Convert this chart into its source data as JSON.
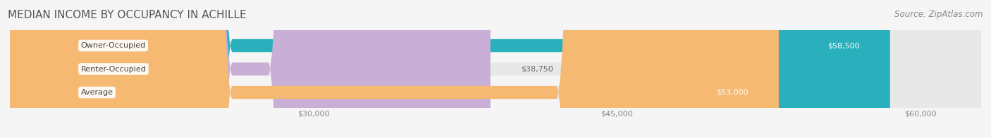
{
  "title": "MEDIAN INCOME BY OCCUPANCY IN ACHILLE",
  "source": "Source: ZipAtlas.com",
  "categories": [
    "Owner-Occupied",
    "Renter-Occupied",
    "Average"
  ],
  "values": [
    58500,
    38750,
    53000
  ],
  "bar_colors": [
    "#2ab0bc",
    "#c9aed6",
    "#f5b971"
  ],
  "value_labels": [
    "$58,500",
    "$38,750",
    "$53,000"
  ],
  "label_inside": [
    true,
    false,
    true
  ],
  "x_min": 15000,
  "x_max": 63000,
  "x_ticks": [
    30000,
    45000,
    60000
  ],
  "x_tick_labels": [
    "$30,000",
    "$45,000",
    "$60,000"
  ],
  "bg_color": "#f5f5f5",
  "bar_bg_color": "#e8e8e8",
  "title_fontsize": 11,
  "source_fontsize": 8.5,
  "label_fontsize": 8,
  "value_fontsize": 8,
  "tick_fontsize": 8
}
